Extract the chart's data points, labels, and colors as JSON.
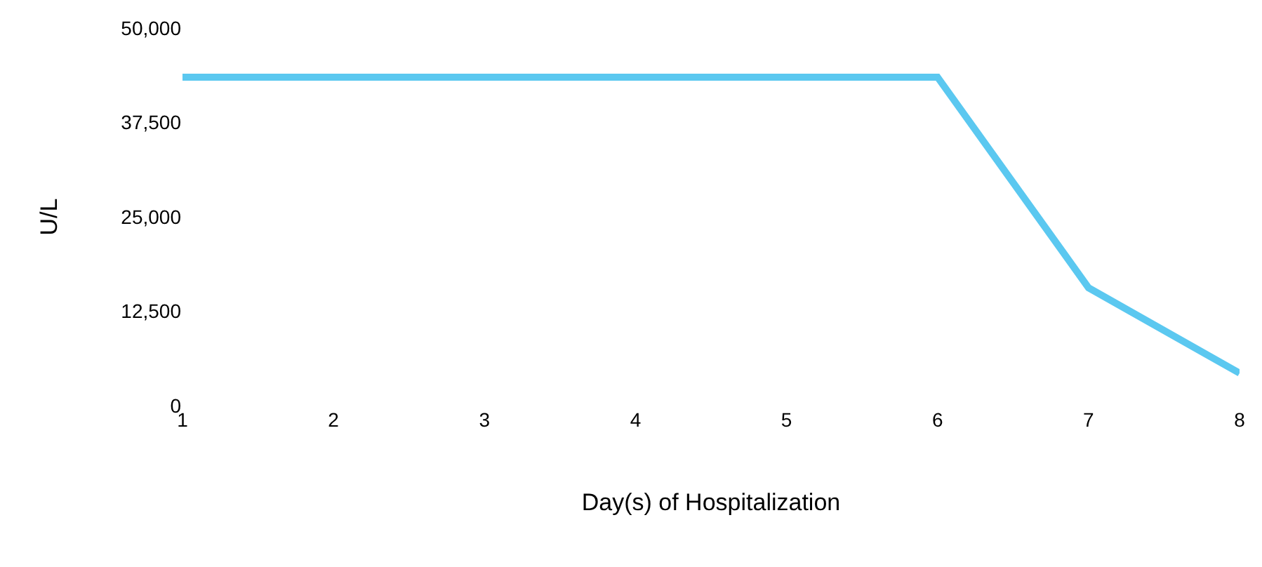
{
  "chart_data": {
    "type": "line",
    "xlabel": "Day(s) of Hospitalization",
    "ylabel": "U/L",
    "x": [
      1,
      2,
      3,
      4,
      5,
      6,
      7,
      8
    ],
    "series": [
      {
        "color": "#5bc8f0",
        "values": [
          43500,
          43500,
          43500,
          43500,
          43500,
          43500,
          15600,
          4300
        ]
      }
    ],
    "xlim": [
      1,
      8
    ],
    "xticks": [
      1,
      2,
      3,
      4,
      5,
      6,
      7,
      8
    ],
    "ylim": [
      0,
      50000
    ],
    "yticks": [
      0,
      {
        "value": 12500,
        "label": "12,500"
      },
      {
        "value": 25000,
        "label": "25,000"
      },
      {
        "value": 37500,
        "label": "37,500"
      },
      {
        "value": 50000,
        "label": "50,000"
      }
    ],
    "marker": "none",
    "line_style": "solid"
  }
}
